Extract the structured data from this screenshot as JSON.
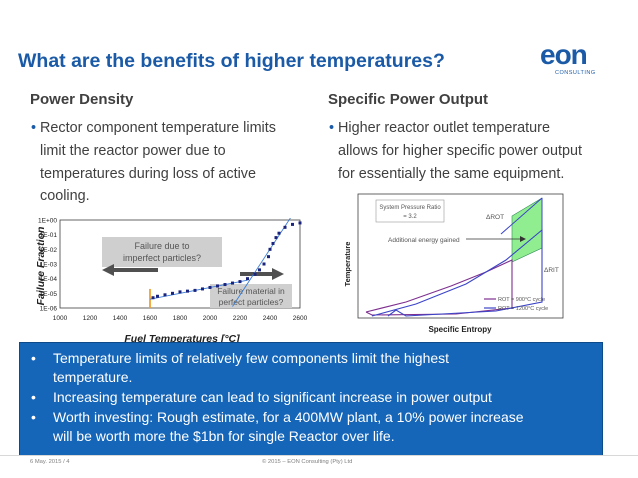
{
  "slide": {
    "title": "What are the benefits of higher temperatures?",
    "logo": {
      "main": "eon",
      "sub": "CONSULTING"
    },
    "left": {
      "heading": "Power Density",
      "bullet_lines": [
        "Rector component temperature limits",
        "limit the reactor power due to",
        "temperatures during loss of active",
        "cooling."
      ]
    },
    "right": {
      "heading": "Specific Power Output",
      "bullet_lines": [
        "Higher reactor outlet temperature",
        "allows for higher specific power output",
        "for essentially the same equipment."
      ]
    },
    "callout": [
      {
        "lines": [
          "Temperature limits of relatively few components limit the highest",
          "temperature."
        ]
      },
      {
        "lines": [
          "Increasing temperature can lead to significant increase in power output"
        ]
      },
      {
        "lines": [
          "Worth investing: Rough estimate, for a 400MW plant, a 10% power increase",
          "will be worth more the $1bn for single Reactor over life."
        ]
      }
    ],
    "footer": {
      "left": "6 May. 2015  /  4",
      "center": "© 2015 – EON Consulting (Pty) Ltd"
    }
  },
  "chart_data": [
    {
      "type": "scatter",
      "title": "",
      "xlabel": "Fuel Temperatures [°C]",
      "ylabel": "Failure Fraction",
      "x_ticks": [
        "1000",
        "1200",
        "1400",
        "1600",
        "1800",
        "2000",
        "2200",
        "2400",
        "2600"
      ],
      "y_ticks": [
        "1E-06",
        "1E-05",
        "1E-04",
        "1E-03",
        "1E-02",
        "1E-01",
        "1E+00"
      ],
      "xlim": [
        1000,
        2600
      ],
      "ylim_log10": [
        -6,
        0
      ],
      "annotations": [
        {
          "text": [
            "Failure due to",
            "imperfect particles?"
          ]
        },
        {
          "text": [
            "Failure material in",
            "perfect particles?"
          ]
        }
      ],
      "marker_x": 1600,
      "series": [
        {
          "x": [
            1620,
            1650,
            1700,
            1750,
            1800,
            1850,
            1900,
            1950,
            2000,
            2050,
            2100,
            2150,
            2200,
            2250,
            2300,
            2330,
            2360,
            2390,
            2400,
            2420,
            2440,
            2460,
            2500,
            2550,
            2600
          ],
          "y_log10": [
            -5.3,
            -5.2,
            -5.1,
            -5.0,
            -4.9,
            -4.85,
            -4.8,
            -4.7,
            -4.6,
            -4.5,
            -4.4,
            -4.3,
            -4.2,
            -4.0,
            -3.7,
            -3.4,
            -3.0,
            -2.5,
            -2.0,
            -1.6,
            -1.2,
            -0.9,
            -0.5,
            -0.3,
            -0.2
          ]
        }
      ]
    },
    {
      "type": "line",
      "title": "",
      "xlabel": "Specific Entropy",
      "ylabel": "Temperature",
      "annotations": [
        {
          "text": [
            "System Pressure Ratio",
            "= 3.2"
          ]
        },
        {
          "text": [
            "ΔROT"
          ]
        },
        {
          "text": [
            "Additional energy gained"
          ]
        },
        {
          "text": [
            "ΔRIT"
          ]
        }
      ],
      "series": [
        {
          "name": "ROT = 900°C cycle",
          "color": "#7d2f8f"
        },
        {
          "name": "ROT = 1200°C cycle",
          "color": "#3b44c7"
        }
      ],
      "highlight_color": "#90ee90"
    }
  ]
}
